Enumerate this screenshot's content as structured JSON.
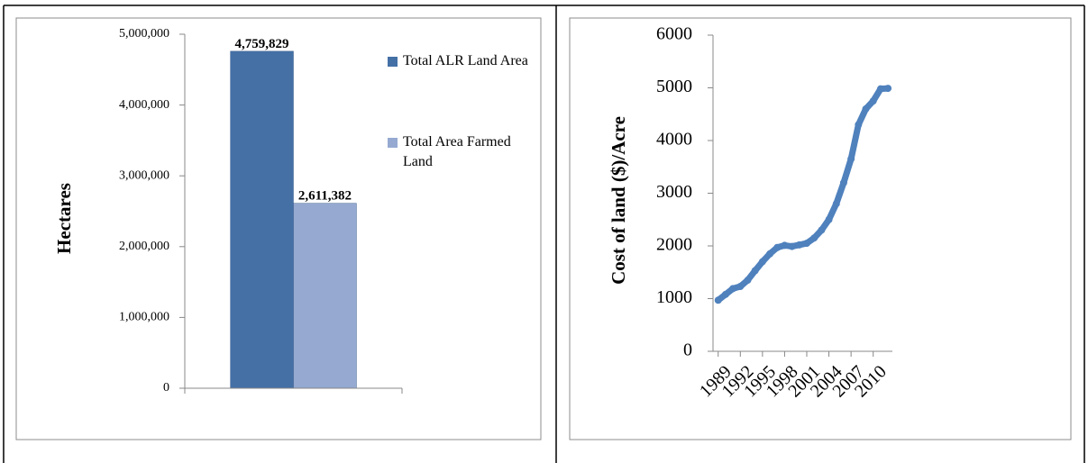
{
  "chart_data": [
    {
      "type": "bar",
      "categories": [
        null
      ],
      "y_label": "Hectares",
      "series": [
        {
          "name": "Total ALR Land Area",
          "color": "#4470a6",
          "values": [
            4759829
          ],
          "value_labels": [
            "4,759,829"
          ]
        },
        {
          "name": "Total Area Farmed Land",
          "color": "#95a9d1",
          "values": [
            2611382
          ],
          "value_labels": [
            "2,611,382"
          ]
        }
      ],
      "ylim": [
        0,
        5000000
      ],
      "yticks": [
        0,
        {
          "value": 1000000,
          "label": "1,000,000"
        },
        {
          "value": 2000000,
          "label": "2,000,000"
        },
        {
          "value": 3000000,
          "label": "3,000,000"
        },
        {
          "value": 4000000,
          "label": "4,000,000"
        },
        {
          "value": 5000000,
          "label": "5,000,000"
        }
      ],
      "legend": "right"
    },
    {
      "type": "line",
      "y_label": "Cost of land ($)/Acre",
      "x": [
        1989,
        1990,
        1991,
        1992,
        1993,
        1994,
        1995,
        1996,
        1997,
        1998,
        1999,
        2000,
        2001,
        2002,
        2003,
        2004,
        2005,
        2006,
        2007,
        2008,
        2009,
        2010,
        2011,
        2012
      ],
      "series": [
        {
          "color": "#4f81bd",
          "values": [
            970,
            1080,
            1190,
            1230,
            1350,
            1530,
            1700,
            1850,
            1970,
            2010,
            1990,
            2020,
            2050,
            2150,
            2300,
            2500,
            2800,
            3200,
            3650,
            4300,
            4600,
            4750,
            4980,
            4990
          ]
        }
      ],
      "xlim": [
        1988.3,
        2012.6
      ],
      "xticks": [
        1989,
        1992,
        1995,
        1998,
        2001,
        2004,
        2007,
        2010
      ],
      "ylim": [
        0,
        6000
      ],
      "yticks": [
        0,
        1000,
        2000,
        3000,
        4000,
        5000,
        6000
      ]
    }
  ]
}
